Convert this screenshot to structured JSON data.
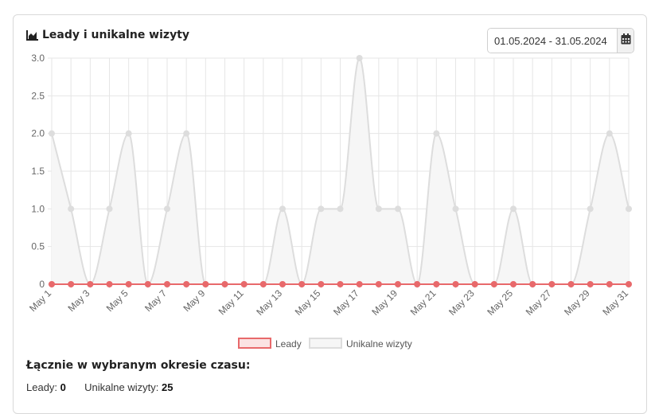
{
  "card": {
    "title": "Leady i unikalne wizyty",
    "title_icon": "area-chart-icon",
    "date_range": "01.05.2024 - 31.05.2024",
    "calendar_icon": "calendar-icon"
  },
  "summary": {
    "heading": "Łącznie w wybranym okresie czasu:",
    "leads_label": "Leady:",
    "leads_value": "0",
    "visits_label": "Unikalne wizyty:",
    "visits_value": "25"
  },
  "chart_data": {
    "type": "area",
    "x": [
      "May 1",
      "May 2",
      "May 3",
      "May 4",
      "May 5",
      "May 6",
      "May 7",
      "May 8",
      "May 9",
      "May 10",
      "May 11",
      "May 12",
      "May 13",
      "May 14",
      "May 15",
      "May 16",
      "May 17",
      "May 18",
      "May 19",
      "May 20",
      "May 21",
      "May 22",
      "May 23",
      "May 24",
      "May 25",
      "May 26",
      "May 27",
      "May 28",
      "May 29",
      "May 30",
      "May 31"
    ],
    "x_tick_labels": [
      "May 1",
      "May 3",
      "May 5",
      "May 7",
      "May 9",
      "May 11",
      "May 13",
      "May 15",
      "May 17",
      "May 19",
      "May 21",
      "May 23",
      "May 25",
      "May 27",
      "May 29",
      "May 31"
    ],
    "y_tick_labels": [
      "3.0",
      "2.5",
      "2.0",
      "1.5",
      "1.0",
      "0.5",
      "0"
    ],
    "ylim": [
      0,
      3
    ],
    "grid": true,
    "legend_position": "bottom",
    "series": [
      {
        "name": "Leady",
        "color": "#e8696b",
        "fill": "#fbe3e3",
        "values": [
          0,
          0,
          0,
          0,
          0,
          0,
          0,
          0,
          0,
          0,
          0,
          0,
          0,
          0,
          0,
          0,
          0,
          0,
          0,
          0,
          0,
          0,
          0,
          0,
          0,
          0,
          0,
          0,
          0,
          0,
          0
        ]
      },
      {
        "name": "Unikalne wizyty",
        "color": "#dddddd",
        "fill": "#f6f6f6",
        "values": [
          2,
          1,
          0,
          1,
          2,
          0,
          1,
          2,
          0,
          0,
          0,
          0,
          1,
          0,
          1,
          1,
          3,
          1,
          1,
          0,
          2,
          1,
          0,
          0,
          1,
          0,
          0,
          0,
          1,
          2,
          1
        ]
      }
    ]
  }
}
